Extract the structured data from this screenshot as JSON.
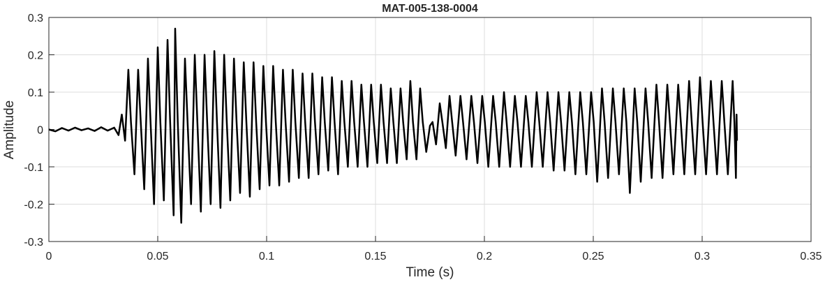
{
  "chart_data": {
    "type": "line",
    "title": "MAT-005-138-0004",
    "xlabel": "Time (s)",
    "ylabel": "Amplitude",
    "xlim": [
      0,
      0.35
    ],
    "xticks": [
      0,
      0.05,
      0.1,
      0.15,
      0.2,
      0.25,
      0.3,
      0.35
    ],
    "ylim": [
      -0.3,
      0.3
    ],
    "yticks": [
      -0.3,
      -0.2,
      -0.1,
      0,
      0.1,
      0.2,
      0.3
    ],
    "grid": true,
    "series": [
      {
        "color": "#000000",
        "x": [
          0,
          0.003,
          0.006,
          0.009,
          0.012,
          0.015,
          0.018,
          0.021,
          0.024,
          0.027,
          0.03,
          0.032,
          0.0335,
          0.035,
          0.0365,
          0.0377,
          0.0393,
          0.041,
          0.0422,
          0.0438,
          0.0455,
          0.0467,
          0.0483,
          0.05,
          0.0512,
          0.0528,
          0.0545,
          0.0557,
          0.0573,
          0.058,
          0.0592,
          0.0608,
          0.0625,
          0.0637,
          0.0653,
          0.067,
          0.0682,
          0.0698,
          0.0715,
          0.0727,
          0.0743,
          0.076,
          0.0772,
          0.0788,
          0.0805,
          0.0817,
          0.0833,
          0.085,
          0.0862,
          0.0878,
          0.0895,
          0.0907,
          0.0923,
          0.094,
          0.0952,
          0.0968,
          0.0985,
          0.0997,
          0.1013,
          0.103,
          0.1042,
          0.1058,
          0.1075,
          0.1087,
          0.1103,
          0.112,
          0.1132,
          0.1148,
          0.1165,
          0.1177,
          0.1193,
          0.121,
          0.1222,
          0.1238,
          0.1255,
          0.1267,
          0.1283,
          0.13,
          0.1312,
          0.1328,
          0.1345,
          0.1357,
          0.1373,
          0.139,
          0.1402,
          0.1418,
          0.1435,
          0.1447,
          0.1463,
          0.148,
          0.1492,
          0.1508,
          0.1525,
          0.1537,
          0.1553,
          0.157,
          0.1582,
          0.1598,
          0.1615,
          0.1627,
          0.1643,
          0.166,
          0.1672,
          0.1688,
          0.1705,
          0.1717,
          0.1733,
          0.175,
          0.1762,
          0.1778,
          0.1795,
          0.1807,
          0.1823,
          0.184,
          0.1852,
          0.1868,
          0.189,
          0.1902,
          0.1918,
          0.194,
          0.1952,
          0.1968,
          0.199,
          0.2002,
          0.2018,
          0.204,
          0.2052,
          0.2068,
          0.209,
          0.2102,
          0.2118,
          0.214,
          0.2152,
          0.2168,
          0.219,
          0.2202,
          0.2218,
          0.224,
          0.2252,
          0.2268,
          0.229,
          0.2302,
          0.2318,
          0.234,
          0.2352,
          0.2368,
          0.239,
          0.2402,
          0.2418,
          0.244,
          0.2452,
          0.2468,
          0.249,
          0.2502,
          0.2518,
          0.254,
          0.2552,
          0.2568,
          0.259,
          0.2602,
          0.2618,
          0.264,
          0.2652,
          0.2668,
          0.269,
          0.2702,
          0.2718,
          0.274,
          0.2752,
          0.2768,
          0.279,
          0.2802,
          0.2818,
          0.284,
          0.2852,
          0.2868,
          0.289,
          0.2902,
          0.2918,
          0.294,
          0.2952,
          0.2968,
          0.299,
          0.3002,
          0.3018,
          0.304,
          0.3052,
          0.3068,
          0.309,
          0.3102,
          0.3118,
          0.314,
          0.3148,
          0.3155,
          0.3158,
          0.316
        ],
        "values": [
          0,
          -0.005,
          0.004,
          -0.003,
          0.005,
          -0.002,
          0.003,
          -0.004,
          0.006,
          -0.003,
          0.005,
          -0.015,
          0.04,
          -0.03,
          0.16,
          0.02,
          -0.12,
          0.16,
          0.02,
          -0.16,
          0.19,
          0.02,
          -0.2,
          0.22,
          0.02,
          -0.19,
          0.24,
          0.02,
          -0.23,
          0.27,
          0.02,
          -0.25,
          0.19,
          0.02,
          -0.2,
          0.2,
          0.02,
          -0.22,
          0.2,
          0.02,
          -0.2,
          0.21,
          0.02,
          -0.21,
          0.2,
          0.02,
          -0.19,
          0.19,
          0.02,
          -0.17,
          0.18,
          0.02,
          -0.18,
          0.18,
          0.02,
          -0.16,
          0.17,
          0.02,
          -0.15,
          0.17,
          0.02,
          -0.15,
          0.16,
          0.02,
          -0.14,
          0.16,
          0.02,
          -0.13,
          0.15,
          0.02,
          -0.13,
          0.15,
          0.02,
          -0.12,
          0.14,
          0.02,
          -0.11,
          0.14,
          0.02,
          -0.12,
          0.13,
          0.02,
          -0.1,
          0.13,
          0.02,
          -0.1,
          0.12,
          0.02,
          -0.1,
          0.12,
          0.02,
          -0.09,
          0.12,
          0.02,
          -0.09,
          0.11,
          0.02,
          -0.09,
          0.11,
          0.02,
          -0.08,
          0.13,
          0.02,
          -0.08,
          0.11,
          0.02,
          -0.06,
          0.01,
          0.02,
          -0.04,
          0.07,
          0.02,
          -0.05,
          0.09,
          0.02,
          -0.07,
          0.09,
          0.02,
          -0.08,
          0.09,
          0.02,
          -0.09,
          0.09,
          0.02,
          -0.1,
          0.09,
          0.02,
          -0.1,
          0.1,
          0.02,
          -0.1,
          0.09,
          0.02,
          -0.1,
          0.09,
          0.02,
          -0.1,
          0.1,
          0.02,
          -0.1,
          0.1,
          0.02,
          -0.11,
          0.1,
          0.02,
          -0.11,
          0.1,
          0.02,
          -0.12,
          0.1,
          0.02,
          -0.12,
          0.1,
          0.02,
          -0.14,
          0.11,
          0.02,
          -0.13,
          0.11,
          0.02,
          -0.12,
          0.11,
          0.02,
          -0.17,
          0.11,
          0.02,
          -0.14,
          0.11,
          0.02,
          -0.13,
          0.12,
          0.02,
          -0.13,
          0.12,
          0.02,
          -0.12,
          0.12,
          0.02,
          -0.12,
          0.13,
          0.02,
          -0.12,
          0.14,
          0.02,
          -0.12,
          0.13,
          0.02,
          -0.12,
          0.13,
          0.02,
          -0.12,
          0.13,
          0.02,
          -0.13,
          0.04,
          -0.03
        ]
      }
    ]
  }
}
